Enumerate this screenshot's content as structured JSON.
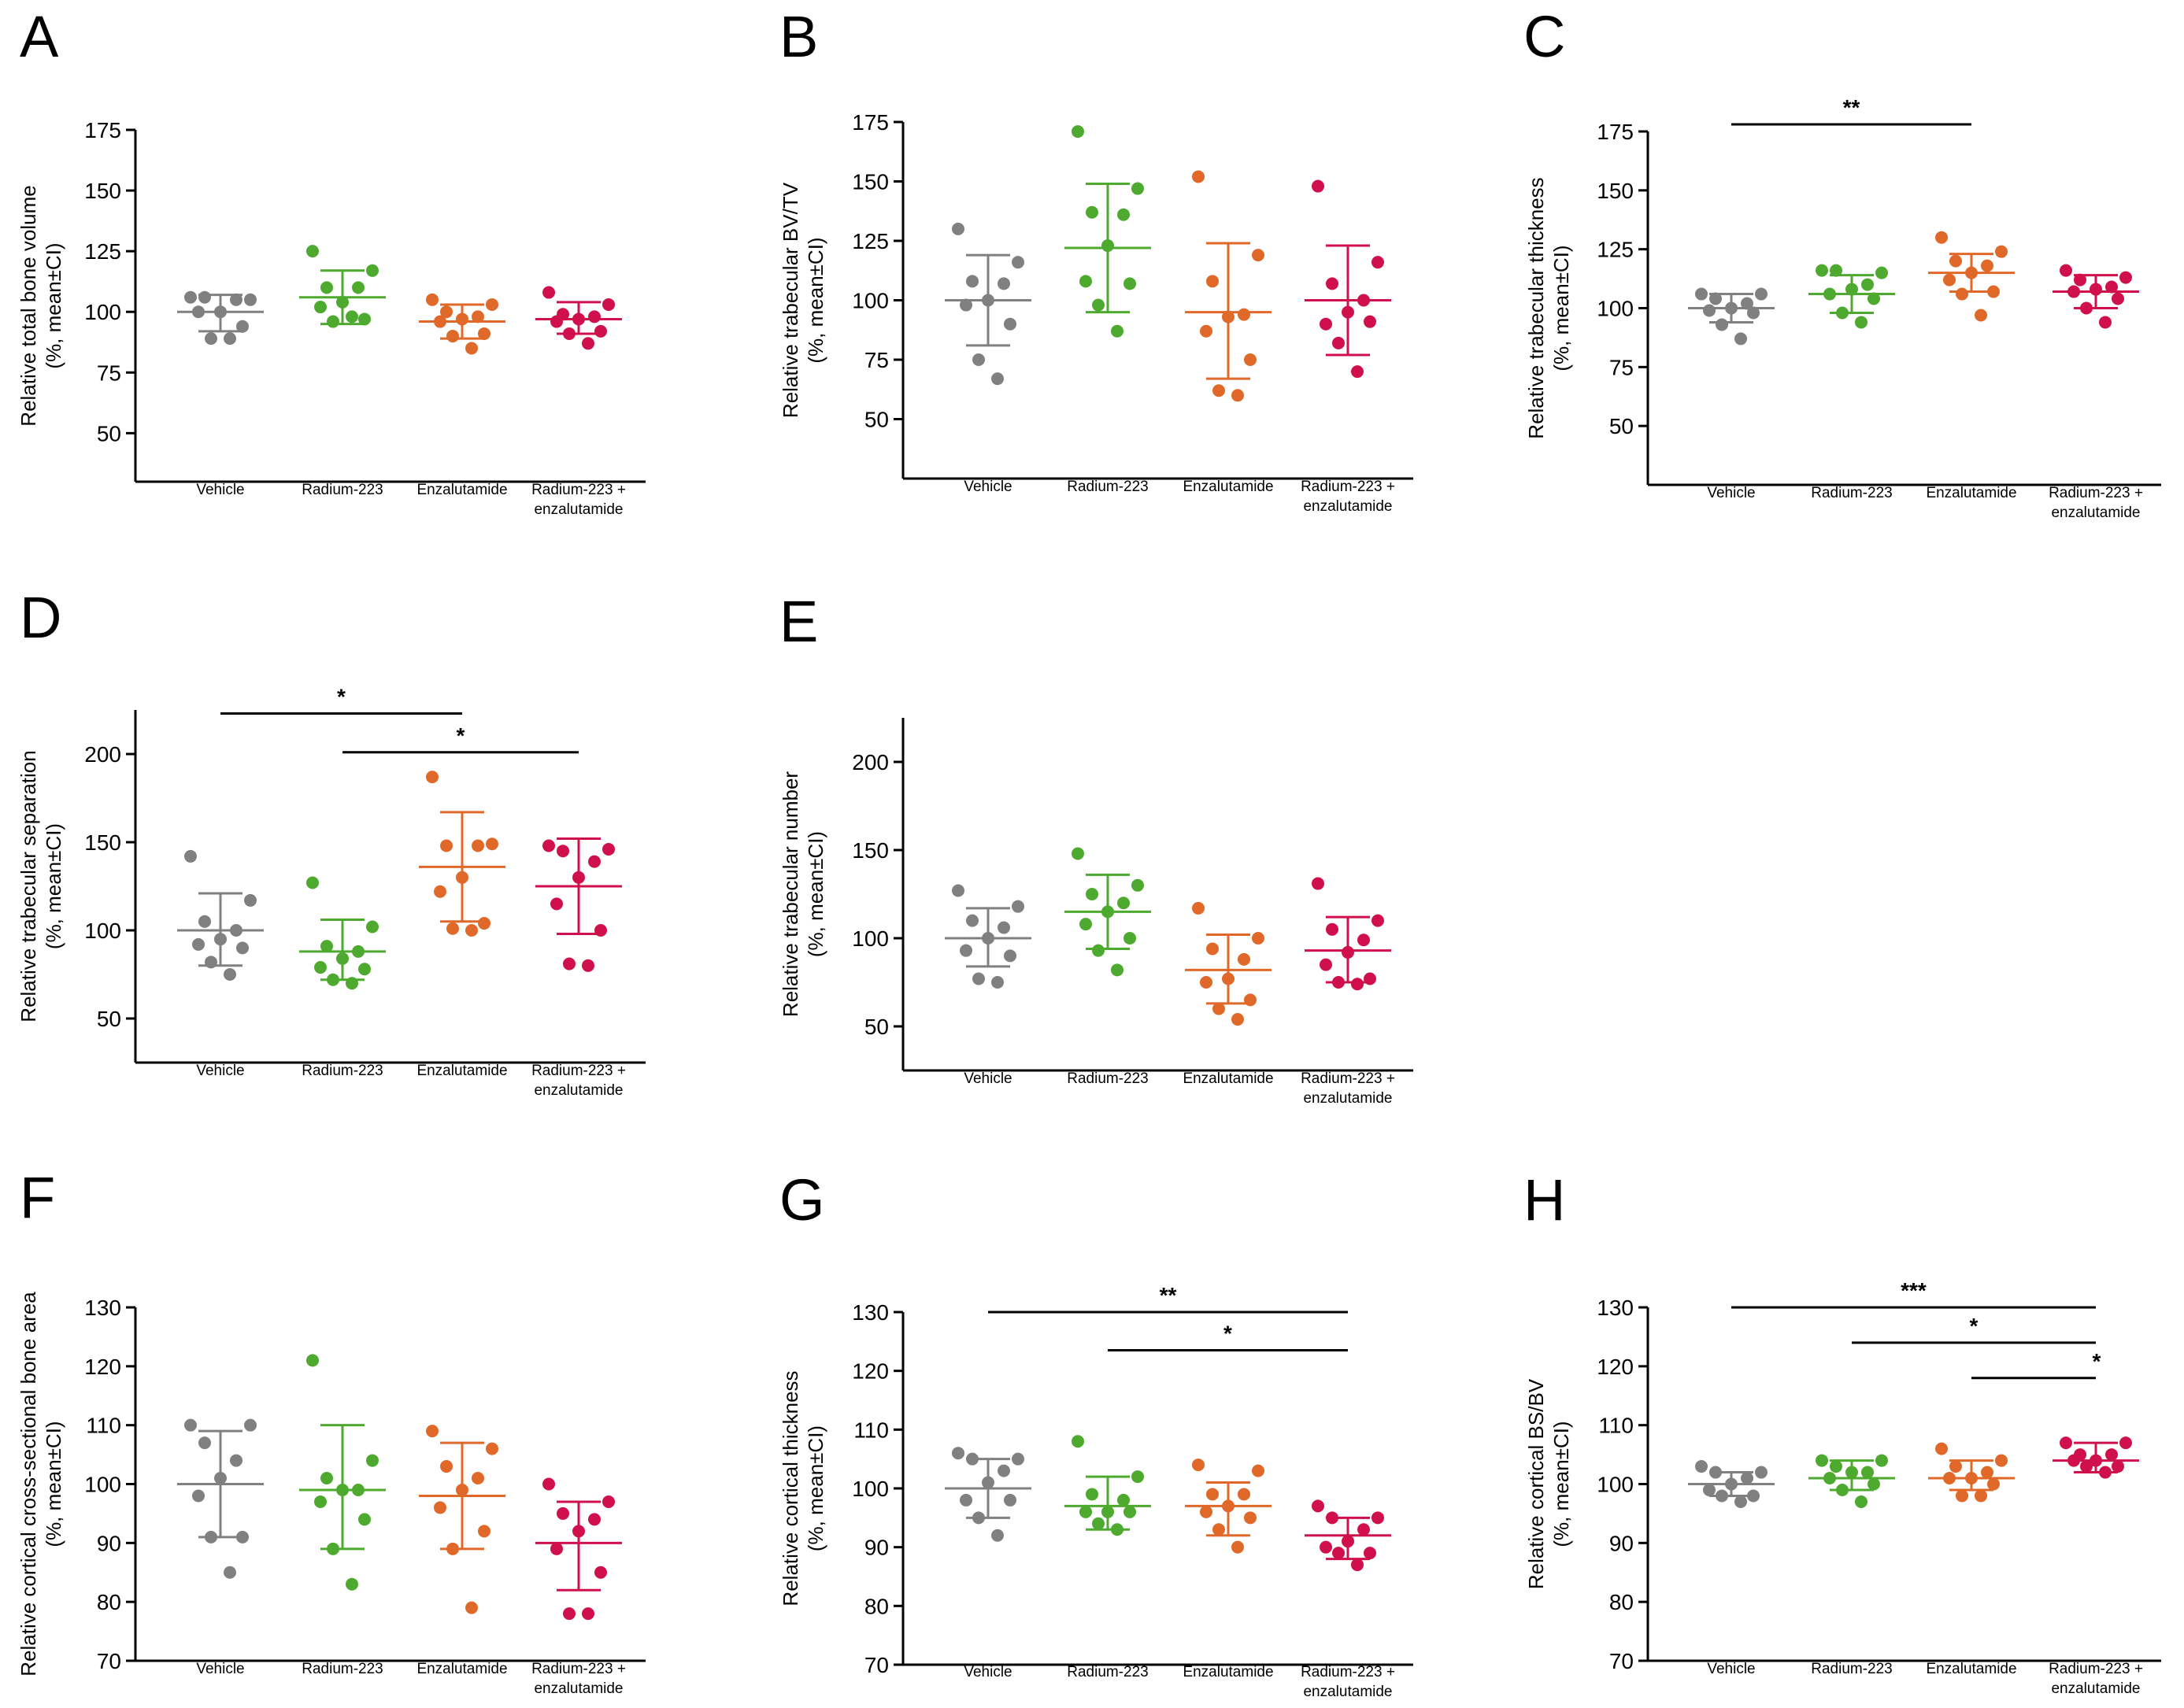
{
  "colors": {
    "Vehicle": "#808080",
    "Radium-223": "#4daa2f",
    "Enzalutamide": "#e0692a",
    "Radium-223 + enzalutamide": "#d0104c"
  },
  "chart_data": [
    {
      "type": "scatter",
      "panel": "A",
      "ylabel": [
        "Relative total bone volume",
        "(%, mean±CI)"
      ],
      "yticks": [
        50,
        75,
        100,
        125,
        150,
        175
      ],
      "ylim": [
        30,
        175
      ],
      "categories": [
        "Vehicle",
        "Radium-223",
        "Enzalutamide",
        "Radium-223 + enzalutamide"
      ],
      "groups": [
        {
          "name": "Vehicle",
          "mean": 100,
          "ci": [
            92,
            107
          ],
          "points": [
            106,
            105,
            106,
            105,
            100,
            100,
            94,
            89,
            89
          ]
        },
        {
          "name": "Radium-223",
          "mean": 106,
          "ci": [
            95,
            117
          ],
          "points": [
            125,
            117,
            110,
            110,
            104,
            102,
            97,
            96,
            98
          ]
        },
        {
          "name": "Enzalutamide",
          "mean": 96,
          "ci": [
            89,
            103
          ],
          "points": [
            105,
            103,
            100,
            98,
            97,
            96,
            91,
            90,
            85
          ]
        },
        {
          "name": "Radium-223 + enzalutamide",
          "mean": 97,
          "ci": [
            91,
            104
          ],
          "points": [
            108,
            103,
            99,
            98,
            97,
            96,
            92,
            91,
            87
          ]
        }
      ],
      "significance": []
    },
    {
      "type": "scatter",
      "panel": "B",
      "ylabel": [
        "Relative trabecular BV/TV",
        "(%, mean±CI)"
      ],
      "yticks": [
        50,
        75,
        100,
        125,
        150,
        175
      ],
      "ylim": [
        25,
        175
      ],
      "categories": [
        "Vehicle",
        "Radium-223",
        "Enzalutamide",
        "Radium-223 + enzalutamide"
      ],
      "groups": [
        {
          "name": "Vehicle",
          "mean": 100,
          "ci": [
            81,
            119
          ],
          "points": [
            130,
            116,
            108,
            107,
            100,
            98,
            90,
            75,
            67
          ]
        },
        {
          "name": "Radium-223",
          "mean": 122,
          "ci": [
            95,
            149
          ],
          "points": [
            171,
            147,
            137,
            136,
            123,
            108,
            107,
            98,
            87
          ]
        },
        {
          "name": "Enzalutamide",
          "mean": 95,
          "ci": [
            67,
            124
          ],
          "points": [
            152,
            119,
            108,
            94,
            93,
            87,
            75,
            62,
            60
          ]
        },
        {
          "name": "Radium-223 + enzalutamide",
          "mean": 100,
          "ci": [
            77,
            123
          ],
          "points": [
            148,
            116,
            107,
            100,
            95,
            90,
            91,
            82,
            70
          ]
        }
      ],
      "significance": []
    },
    {
      "type": "scatter",
      "panel": "C",
      "ylabel": [
        "Relative trabecular thickness",
        "(%, mean±CI)"
      ],
      "yticks": [
        50,
        75,
        100,
        125,
        150,
        175
      ],
      "ylim": [
        25,
        175
      ],
      "categories": [
        "Vehicle",
        "Radium-223",
        "Enzalutamide",
        "Radium-223 + enzalutamide"
      ],
      "groups": [
        {
          "name": "Vehicle",
          "mean": 100,
          "ci": [
            94,
            106
          ],
          "points": [
            106,
            106,
            104,
            102,
            100,
            99,
            98,
            93,
            87
          ]
        },
        {
          "name": "Radium-223",
          "mean": 106,
          "ci": [
            98,
            114
          ],
          "points": [
            116,
            115,
            116,
            110,
            108,
            106,
            104,
            98,
            94
          ]
        },
        {
          "name": "Enzalutamide",
          "mean": 115,
          "ci": [
            107,
            123
          ],
          "points": [
            130,
            124,
            120,
            118,
            115,
            112,
            107,
            106,
            97
          ]
        },
        {
          "name": "Radium-223 + enzalutamide",
          "mean": 107,
          "ci": [
            100,
            114
          ],
          "points": [
            116,
            113,
            112,
            109,
            108,
            107,
            104,
            100,
            94
          ]
        }
      ],
      "significance": [
        {
          "from": 0,
          "to": 2,
          "label": "**",
          "value": 178
        }
      ]
    },
    {
      "type": "scatter",
      "panel": "D",
      "ylabel": [
        "Relative trabecular separation",
        "(%, mean±CI)"
      ],
      "yticks": [
        50,
        100,
        150,
        200
      ],
      "ylim": [
        25,
        225
      ],
      "categories": [
        "Vehicle",
        "Radium-223",
        "Enzalutamide",
        "Radium-223 + enzalutamide"
      ],
      "groups": [
        {
          "name": "Vehicle",
          "mean": 100,
          "ci": [
            80,
            121
          ],
          "points": [
            142,
            117,
            105,
            100,
            95,
            92,
            90,
            82,
            75
          ]
        },
        {
          "name": "Radium-223",
          "mean": 88,
          "ci": [
            72,
            106
          ],
          "points": [
            127,
            102,
            91,
            88,
            84,
            79,
            78,
            72,
            70
          ]
        },
        {
          "name": "Enzalutamide",
          "mean": 136,
          "ci": [
            105,
            167
          ],
          "points": [
            187,
            149,
            148,
            148,
            130,
            122,
            104,
            101,
            100
          ]
        },
        {
          "name": "Radium-223 + enzalutamide",
          "mean": 125,
          "ci": [
            98,
            152
          ],
          "points": [
            148,
            146,
            145,
            139,
            130,
            115,
            100,
            81,
            80
          ]
        }
      ],
      "significance": [
        {
          "from": 0,
          "to": 2,
          "label": "*",
          "value": 223
        },
        {
          "from": 1,
          "to": 3,
          "label": "*",
          "value": 201
        }
      ]
    },
    {
      "type": "scatter",
      "panel": "E",
      "ylabel": [
        "Relative trabecular number",
        "(%, mean±CI)"
      ],
      "yticks": [
        50,
        100,
        150,
        200
      ],
      "ylim": [
        25,
        225
      ],
      "categories": [
        "Vehicle",
        "Radium-223",
        "Enzalutamide",
        "Radium-223 + enzalutamide"
      ],
      "groups": [
        {
          "name": "Vehicle",
          "mean": 100,
          "ci": [
            84,
            117
          ],
          "points": [
            127,
            118,
            110,
            106,
            100,
            93,
            90,
            77,
            75
          ]
        },
        {
          "name": "Radium-223",
          "mean": 115,
          "ci": [
            94,
            136
          ],
          "points": [
            148,
            130,
            125,
            120,
            115,
            108,
            100,
            93,
            82
          ]
        },
        {
          "name": "Enzalutamide",
          "mean": 82,
          "ci": [
            63,
            102
          ],
          "points": [
            117,
            100,
            94,
            88,
            77,
            75,
            65,
            60,
            54
          ]
        },
        {
          "name": "Radium-223 + enzalutamide",
          "mean": 93,
          "ci": [
            75,
            112
          ],
          "points": [
            131,
            110,
            105,
            99,
            92,
            85,
            77,
            75,
            74
          ]
        }
      ],
      "significance": []
    },
    {
      "type": "scatter",
      "panel": "F",
      "ylabel": [
        "Relative cortical cross-sectional bone area",
        "(%, mean±CI)"
      ],
      "yticks": [
        70,
        80,
        90,
        100,
        110,
        120,
        130
      ],
      "ylim": [
        70,
        130
      ],
      "categories": [
        "Vehicle",
        "Radium-223",
        "Enzalutamide",
        "Radium-223 + enzalutamide"
      ],
      "groups": [
        {
          "name": "Vehicle",
          "mean": 100,
          "ci": [
            91,
            109
          ],
          "points": [
            110,
            110,
            107,
            104,
            101,
            98,
            91,
            91,
            85
          ]
        },
        {
          "name": "Radium-223",
          "mean": 99,
          "ci": [
            89,
            110
          ],
          "points": [
            121,
            104,
            101,
            99,
            99,
            97,
            94,
            89,
            83
          ]
        },
        {
          "name": "Enzalutamide",
          "mean": 98,
          "ci": [
            89,
            107
          ],
          "points": [
            109,
            106,
            103,
            101,
            99,
            96,
            92,
            89,
            79
          ]
        },
        {
          "name": "Radium-223 + enzalutamide",
          "mean": 90,
          "ci": [
            82,
            97
          ],
          "points": [
            100,
            97,
            95,
            94,
            92,
            89,
            85,
            78,
            78
          ]
        }
      ],
      "significance": []
    },
    {
      "type": "scatter",
      "panel": "G",
      "ylabel": [
        "Relative cortical thickness",
        "(%, mean±CI)"
      ],
      "yticks": [
        70,
        80,
        90,
        100,
        110,
        120,
        130
      ],
      "ylim": [
        70,
        130
      ],
      "categories": [
        "Vehicle",
        "Radium-223",
        "Enzalutamide",
        "Radium-223 + enzalutamide"
      ],
      "groups": [
        {
          "name": "Vehicle",
          "mean": 100,
          "ci": [
            95,
            105
          ],
          "points": [
            106,
            105,
            105,
            103,
            101,
            98,
            98,
            95,
            92
          ]
        },
        {
          "name": "Radium-223",
          "mean": 97,
          "ci": [
            93,
            102
          ],
          "points": [
            108,
            102,
            99,
            98,
            96,
            96,
            96,
            94,
            93
          ]
        },
        {
          "name": "Enzalutamide",
          "mean": 97,
          "ci": [
            92,
            101
          ],
          "points": [
            104,
            103,
            99,
            99,
            97,
            96,
            95,
            93,
            90
          ]
        },
        {
          "name": "Radium-223 + enzalutamide",
          "mean": 92,
          "ci": [
            88,
            95
          ],
          "points": [
            97,
            95,
            95,
            93,
            91,
            90,
            89,
            89,
            87
          ]
        }
      ],
      "significance": [
        {
          "from": 0,
          "to": 3,
          "label": "**",
          "value": 130
        },
        {
          "from": 1,
          "to": 3,
          "label": "*",
          "value": 123.5
        }
      ]
    },
    {
      "type": "scatter",
      "panel": "H",
      "ylabel": [
        "Relative cortical BS/BV",
        "(%, mean±CI)"
      ],
      "yticks": [
        70,
        80,
        90,
        100,
        110,
        120,
        130
      ],
      "ylim": [
        70,
        130
      ],
      "categories": [
        "Vehicle",
        "Radium-223",
        "Enzalutamide",
        "Radium-223 + enzalutamide"
      ],
      "groups": [
        {
          "name": "Vehicle",
          "mean": 100,
          "ci": [
            98,
            102
          ],
          "points": [
            103,
            102,
            102,
            101,
            100,
            99,
            98,
            98,
            97
          ]
        },
        {
          "name": "Radium-223",
          "mean": 101,
          "ci": [
            99,
            104
          ],
          "points": [
            104,
            104,
            103,
            102,
            102,
            101,
            100,
            99,
            97
          ]
        },
        {
          "name": "Enzalutamide",
          "mean": 101,
          "ci": [
            99,
            104
          ],
          "points": [
            106,
            104,
            103,
            102,
            101,
            101,
            100,
            98,
            98
          ]
        },
        {
          "name": "Radium-223 + enzalutamide",
          "mean": 104,
          "ci": [
            102,
            107
          ],
          "points": [
            107,
            107,
            105,
            105,
            104,
            104,
            103,
            103,
            102
          ]
        }
      ],
      "significance": [
        {
          "from": 0,
          "to": 3,
          "label": "***",
          "value": 130
        },
        {
          "from": 1,
          "to": 3,
          "label": "*",
          "value": 124
        },
        {
          "from": 2,
          "to": 3,
          "label": "*",
          "value": 118
        }
      ]
    }
  ]
}
